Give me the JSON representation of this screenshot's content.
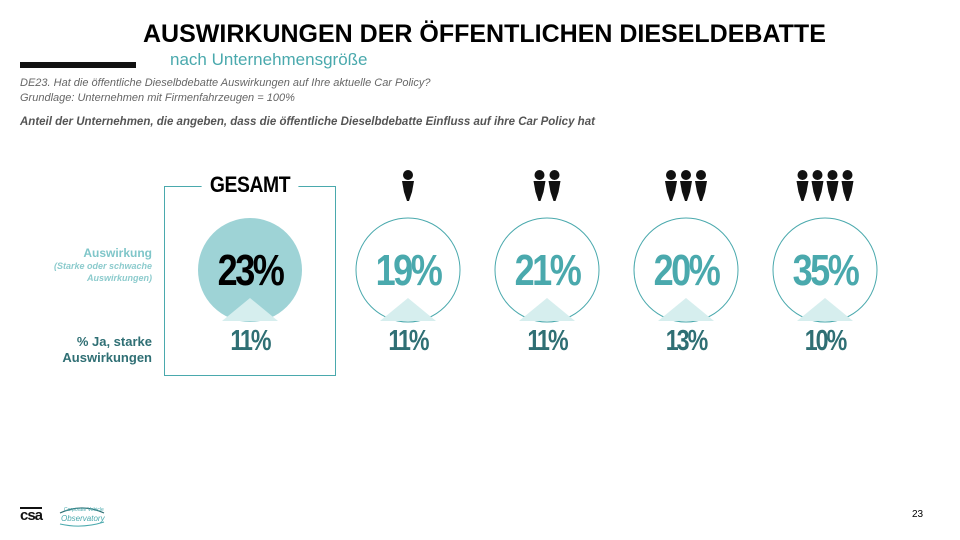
{
  "title": "AUSWIRKUNGEN DER ÖFFENTLICHEN DIESELDEBATTE",
  "subtitle": "nach Unternehmensgröße",
  "question_line1": "DE23. Hat die öffentliche Dieselbdebatte Auswirkungen auf Ihre aktuelle Car Policy?",
  "question_line2": "Grundlage: Unternehmen mit Firmenfahrzeugen = 100%",
  "note": "Anteil der Unternehmen, die angeben, dass die öffentliche Dieselbdebatte Einfluss auf ihre Car Policy hat",
  "row_labels": {
    "impact": "Auswirkung",
    "impact_sub": "(Starke oder schwache Auswirkungen)",
    "strong": "% Ja, starke Auswirkungen"
  },
  "colors": {
    "teal": "#4aa9ad",
    "teal_fill": "#9ed3d6",
    "dark_teal": "#2f6f74",
    "triangle": "#d6eeee"
  },
  "icons": [
    "person-icon"
  ],
  "chart_data": {
    "type": "table",
    "categories": [
      "GESAMT",
      "1",
      "2",
      "3",
      "4"
    ],
    "category_people_icons": [
      0,
      1,
      2,
      3,
      4
    ],
    "series": [
      {
        "name": "Auswirkung",
        "values": [
          23,
          19,
          21,
          20,
          35
        ],
        "labels": [
          "23%",
          "19%",
          "21%",
          "20%",
          "35%"
        ]
      },
      {
        "name": "% Ja, starke Auswirkungen",
        "values": [
          11,
          11,
          11,
          13,
          10
        ],
        "labels": [
          "11%",
          "11%",
          "11%",
          "13%",
          "10%"
        ]
      }
    ]
  },
  "gesamt_label": "GESAMT",
  "page_number": "23",
  "logos": {
    "csa": "csa",
    "cvo_line1": "Corporate Vehicle",
    "cvo_line2": "Observatory"
  }
}
